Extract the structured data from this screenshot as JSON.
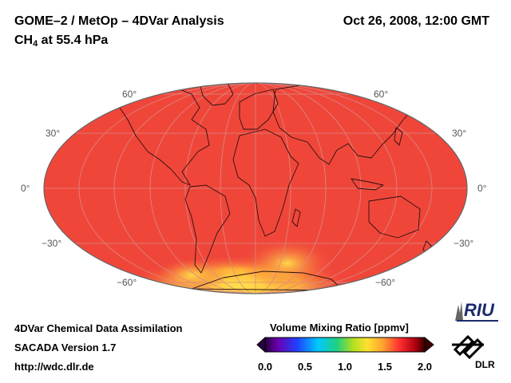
{
  "header": {
    "title": "GOME–2 / MetOp – 4DVar Analysis",
    "species_main": "CH",
    "species_sub": "4",
    "species_rest": " at 55.4 hPa",
    "datetime": "Oct 26, 2008, 12:00 GMT"
  },
  "map": {
    "projection": "Mollweide",
    "background_color": "#f0463a",
    "lat_labels": [
      "60°",
      "30°",
      "0°",
      "−30°",
      "−60°"
    ]
  },
  "colorbar": {
    "title": "Volume Mixing Ratio [ppmv]",
    "ticks": [
      "0.0",
      "0.5",
      "1.0",
      "1.5",
      "2.0"
    ],
    "range": [
      0.0,
      2.0
    ]
  },
  "footer": {
    "line1": "4DVar Chemical Data Assimilation",
    "line2": "SACADA Version 1.7",
    "line3": "http://wdc.dlr.de"
  },
  "logos": {
    "riu": "RIU",
    "dlr": "DLR"
  }
}
